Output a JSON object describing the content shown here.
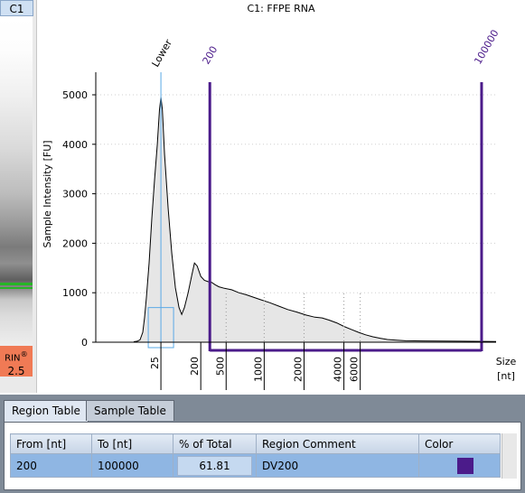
{
  "sample_label": "C1",
  "rin": {
    "label": "RIN",
    "mark": "®",
    "value": "2.5"
  },
  "colors": {
    "region": "#4b1b8a",
    "lower_marker": "#5aa9e6",
    "marker_band": "#26b526",
    "rin_badge": "#f07a55",
    "trace_fill": "#e6e6e6"
  },
  "chart_data": {
    "type": "area",
    "title": "C1: FFPE RNA",
    "xlabel": "Size\n[nt]",
    "ylabel": "Sample Intensity [FU]",
    "ylim": [
      0,
      5000
    ],
    "y_ticks": [
      0,
      1000,
      2000,
      3000,
      4000,
      5000
    ],
    "x_ticks": [
      "25",
      "200",
      "500",
      "1000",
      "2000",
      "4000",
      "6000"
    ],
    "lower_marker": {
      "label": "Lower",
      "size": 25
    },
    "region": {
      "from": 200,
      "to": 100000,
      "from_label": "200",
      "to_label": "100000"
    },
    "trace": [
      [
        0,
        10
      ],
      [
        0.2,
        20
      ],
      [
        0.35,
        50
      ],
      [
        0.5,
        200
      ],
      [
        0.6,
        500
      ],
      [
        0.7,
        900
      ],
      [
        0.85,
        1600
      ],
      [
        1.0,
        2500
      ],
      [
        1.15,
        3300
      ],
      [
        1.3,
        4000
      ],
      [
        1.42,
        4700
      ],
      [
        1.5,
        4950
      ],
      [
        1.58,
        4700
      ],
      [
        1.7,
        3800
      ],
      [
        1.9,
        2700
      ],
      [
        2.1,
        1800
      ],
      [
        2.3,
        1100
      ],
      [
        2.5,
        700
      ],
      [
        2.65,
        560
      ],
      [
        2.8,
        700
      ],
      [
        3.0,
        1000
      ],
      [
        3.2,
        1350
      ],
      [
        3.35,
        1600
      ],
      [
        3.5,
        1540
      ],
      [
        3.7,
        1330
      ],
      [
        3.9,
        1250
      ],
      [
        4.1,
        1225
      ],
      [
        4.3,
        1210
      ],
      [
        4.5,
        1160
      ],
      [
        4.7,
        1120
      ],
      [
        5.0,
        1090
      ],
      [
        5.4,
        1060
      ],
      [
        5.8,
        1000
      ],
      [
        6.2,
        960
      ],
      [
        6.6,
        910
      ],
      [
        7.0,
        860
      ],
      [
        7.5,
        800
      ],
      [
        8.0,
        730
      ],
      [
        8.5,
        660
      ],
      [
        9.0,
        610
      ],
      [
        9.5,
        550
      ],
      [
        10.0,
        505
      ],
      [
        10.4,
        490
      ],
      [
        10.8,
        445
      ],
      [
        11.2,
        390
      ],
      [
        11.6,
        320
      ],
      [
        12.0,
        260
      ],
      [
        12.4,
        200
      ],
      [
        12.8,
        150
      ],
      [
        13.2,
        110
      ],
      [
        13.6,
        80
      ],
      [
        14.0,
        55
      ],
      [
        14.5,
        40
      ],
      [
        15.0,
        30
      ],
      [
        16.0,
        25
      ],
      [
        18.0,
        20
      ],
      [
        20.0,
        15
      ]
    ]
  },
  "tabs": {
    "region_table": "Region Table",
    "sample_table": "Sample Table"
  },
  "region_table": {
    "headers": {
      "from": "From [nt]",
      "to": "To [nt]",
      "pct": "% of Total",
      "comment": "Region Comment",
      "color": "Color"
    },
    "rows": [
      {
        "from": "200",
        "to": "100000",
        "pct": "61.81",
        "comment": "DV200"
      }
    ]
  }
}
